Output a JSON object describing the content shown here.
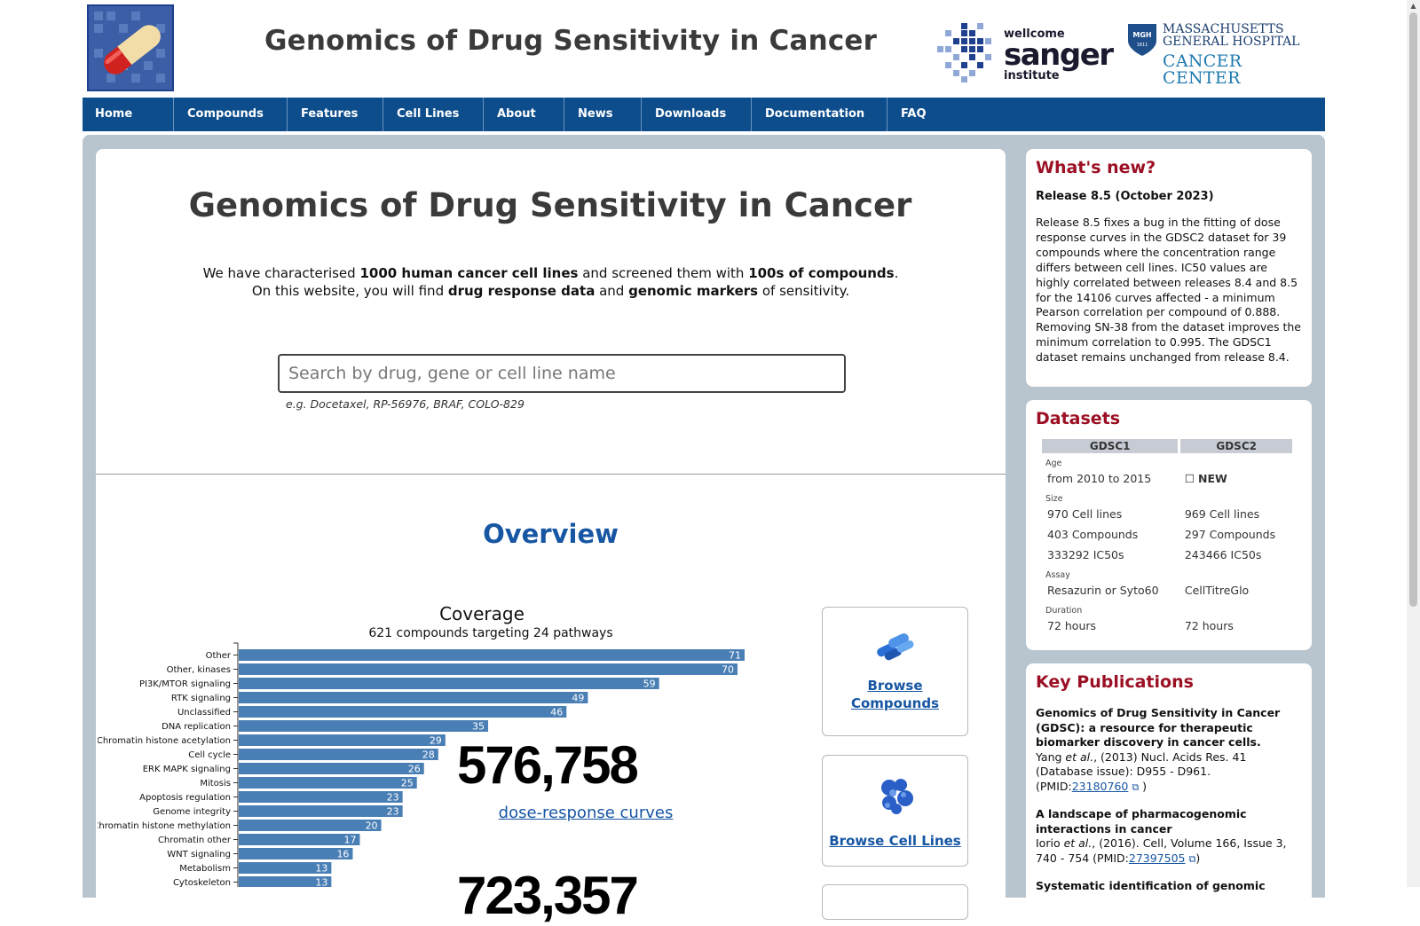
{
  "header": {
    "title": "Genomics of Drug Sensitivity in Cancer",
    "sanger": {
      "line1": "wellcome",
      "line2": "sanger",
      "line3": "institute"
    },
    "mgh": {
      "badge": "MGH",
      "badge_year": "1811",
      "line1": "MASSACHUSETTS",
      "line2": "GENERAL HOSPITAL",
      "line3": "CANCER CENTER"
    }
  },
  "nav": [
    "Home",
    "Compounds",
    "Features",
    "Cell Lines",
    "About",
    "News",
    "Downloads",
    "Documentation",
    "FAQ"
  ],
  "main": {
    "title": "Genomics of Drug Sensitivity in Cancer",
    "intro1": {
      "a": "We have characterised ",
      "b": "1000 human cancer cell lines",
      "c": " and screened them with ",
      "d": "100s of compounds",
      "e": "."
    },
    "intro2": {
      "a": "On this website, you will find ",
      "b": "drug response data",
      "c": " and ",
      "d": "genomic markers",
      "e": " of sensitivity."
    },
    "search_placeholder": "Search by drug, gene or cell line name",
    "search_hint": "e.g. Docetaxel, RP-56976, BRAF, COLO-829",
    "overview_title": "Overview",
    "stat1_value": "576,758",
    "stat1_label": "dose-response curves",
    "stat2_value": "723,357"
  },
  "chart_data": {
    "type": "bar",
    "orientation": "horizontal",
    "title": "Coverage",
    "subtitle": "621 compounds targeting 24 pathways",
    "categories": [
      "Other",
      "Other, kinases",
      "PI3K/MTOR signaling",
      "RTK signaling",
      "Unclassified",
      "DNA replication",
      "Chromatin histone acetylation",
      "Cell cycle",
      "ERK MAPK signaling",
      "Mitosis",
      "Apoptosis regulation",
      "Genome integrity",
      "Chromatin histone methylation",
      "Chromatin other",
      "WNT signaling",
      "Metabolism",
      "Cytoskeleton"
    ],
    "values": [
      71,
      70,
      59,
      49,
      46,
      35,
      29,
      28,
      26,
      25,
      23,
      23,
      20,
      17,
      16,
      13,
      13
    ],
    "bar_color": "#4a7fb5",
    "xlim": [
      0,
      71
    ]
  },
  "browse": {
    "compounds": "Browse Compounds",
    "cell_lines": "Browse Cell Lines"
  },
  "sidebar": {
    "whats_new": {
      "heading": "What's new?",
      "release": "Release 8.5 (October 2023)",
      "text": "Release 8.5 fixes a bug in the fitting of dose response curves in the GDSC2 dataset for 39 compounds where the concentration range differs between cell lines. IC50 values are highly correlated between releases 8.4 and 8.5 for the 14106 curves affected - a minimum Pearson correlation per compound of 0.888. Removing SN-38 from the dataset improves the minimum correlation to 0.995. The GDSC1 dataset remains unchanged from release 8.4."
    },
    "datasets": {
      "heading": "Datasets",
      "col1": "GDSC1",
      "col2": "GDSC2",
      "age_label": "Age",
      "age1": "from 2010 to 2015",
      "age2_icon": "☐",
      "age2": "NEW",
      "size_label": "Size",
      "cells1": "970 Cell lines",
      "cells2": "969 Cell lines",
      "comp1": "403 Compounds",
      "comp2": "297 Compounds",
      "ic1": "333292 IC50s",
      "ic2": "243466 IC50s",
      "assay_label": "Assay",
      "assay1": "Resazurin or Syto60",
      "assay2": "CellTitreGlo",
      "dur_label": "Duration",
      "dur1": "72 hours",
      "dur2": "72 hours"
    },
    "publications": {
      "heading": "Key Publications",
      "p1_title": "Genomics of Drug Sensitivity in Cancer (GDSC): a resource for therapeutic biomarker discovery in cancer cells.",
      "p1_author": "Yang ",
      "p1_etal": "et al.",
      "p1_ref": ", (2013) Nucl. Acids Res. 41 (Database issue): D955 - D961. (PMID:",
      "p1_pmid": "23180760",
      "p1_end": " )",
      "p2_title": "A landscape of pharmacogenomic interactions in cancer",
      "p2_author": "Iorio ",
      "p2_etal": "et al.",
      "p2_ref": ", (2016). Cell, Volume 166, Issue 3, 740 - 754 (PMID:",
      "p2_pmid": "27397505",
      "p2_end": ")",
      "p3_title": "Systematic identification of genomic"
    }
  }
}
